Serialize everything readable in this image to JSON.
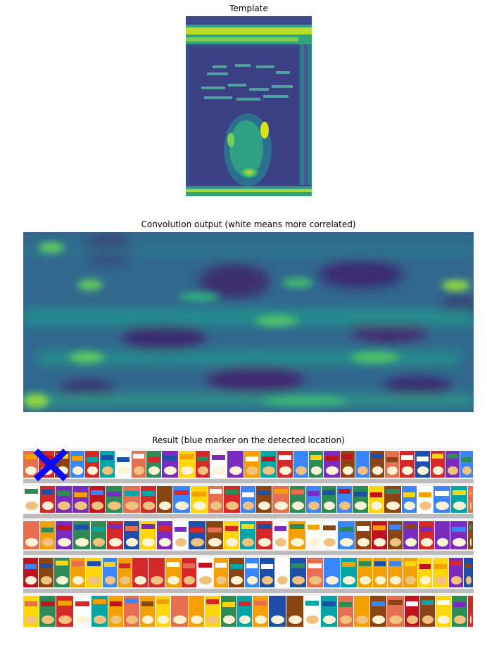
{
  "figure": {
    "template_title": "Template",
    "convolution_title": "Convolution output (white means more correlated)",
    "result_title": "Result (blue marker on the detected location)"
  },
  "colors": {
    "viridis_dark": "#3b1f62",
    "viridis_mid": "#2d7f8e",
    "viridis_bright": "#d8e219",
    "marker": "#0a0aff",
    "shelf": "#c9c9c9"
  },
  "icons": {
    "marker": "x-marker-icon"
  }
}
